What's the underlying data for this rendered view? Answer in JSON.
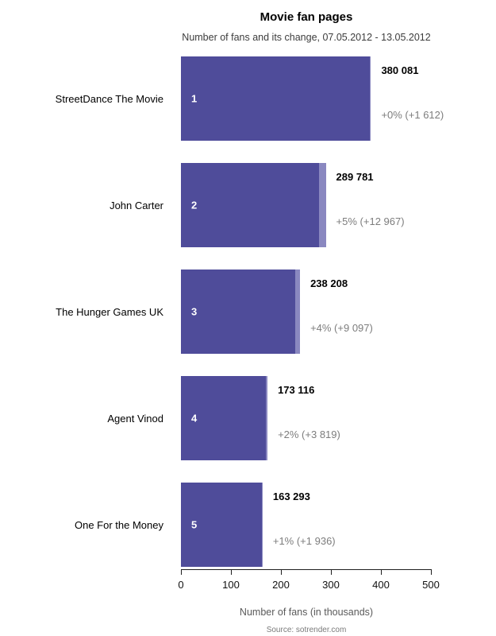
{
  "title": "Movie fan pages",
  "subtitle": "Number of fans and its change, 07.05.2012 - 13.05.2012",
  "xlabel": "Number of fans (in thousands)",
  "source": "Source: sotrender.com",
  "colors": {
    "bar_main": "#4f4c9a",
    "bar_change_segment": "#8a88c0",
    "value_text": "#000000",
    "change_text": "#7d7d7d",
    "muted_text": "#5a5a5a"
  },
  "axis": {
    "ticks": [
      "0",
      "100",
      "200",
      "300",
      "400",
      "500"
    ]
  },
  "bars": [
    {
      "rank": "1",
      "label": "StreetDance The Movie",
      "value": "380 081",
      "change": "+0% (+1 612)"
    },
    {
      "rank": "2",
      "label": "John Carter",
      "value": "289 781",
      "change": "+5% (+12 967)"
    },
    {
      "rank": "3",
      "label": "The Hunger Games UK",
      "value": "238 208",
      "change": "+4% (+9 097)"
    },
    {
      "rank": "4",
      "label": "Agent Vinod",
      "value": "173 116",
      "change": "+2% (+3 819)"
    },
    {
      "rank": "5",
      "label": "One For the Money",
      "value": "163 293",
      "change": "+1% (+1 936)"
    }
  ],
  "chart_data": {
    "type": "bar",
    "orientation": "horizontal",
    "title": "Movie fan pages",
    "subtitle": "Number of fans and its change, 07.05.2012 - 13.05.2012",
    "xlabel": "Number of fans (in thousands)",
    "xlim": [
      0,
      500
    ],
    "x_ticks": [
      0,
      100,
      200,
      300,
      400,
      500
    ],
    "x_unit": "thousands of fans",
    "grid": false,
    "legend": false,
    "categories": [
      "StreetDance The Movie",
      "John Carter",
      "The Hunger Games UK",
      "Agent Vinod",
      "One For the Money"
    ],
    "series": [
      {
        "name": "fans_total",
        "values": [
          380081,
          289781,
          238208,
          173116,
          163293
        ]
      },
      {
        "name": "weekly_change",
        "values": [
          1612,
          12967,
          9097,
          3819,
          1936
        ]
      }
    ],
    "change_percent_labels": [
      "+0%",
      "+5%",
      "+4%",
      "+2%",
      "+1%"
    ],
    "source": "Source: sotrender.com"
  }
}
